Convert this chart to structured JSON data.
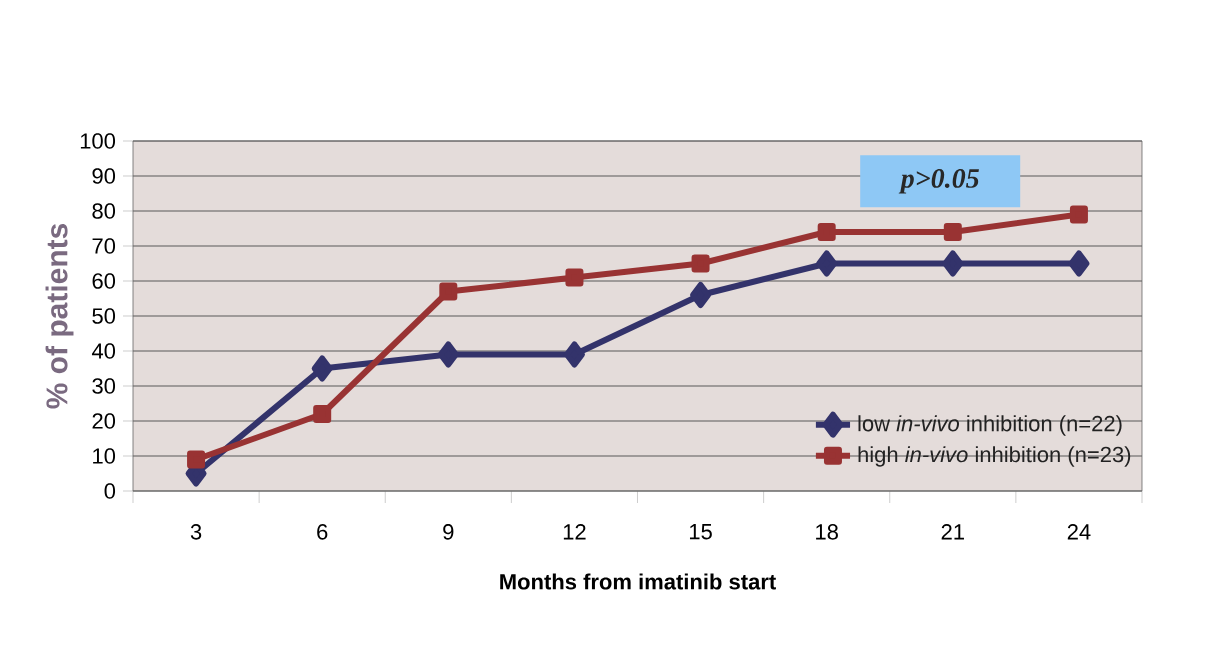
{
  "chart_data": {
    "type": "line",
    "xlabel": "Months from imatinib start",
    "ylabel": "% of patients",
    "categories": [
      "3",
      "6",
      "9",
      "12",
      "15",
      "18",
      "21",
      "24"
    ],
    "series": [
      {
        "name": "low *in-vivo* inhibition (n=22)",
        "color": "#33336b",
        "marker": "diamond",
        "values": [
          5,
          35,
          39,
          39,
          56,
          65,
          65,
          65
        ]
      },
      {
        "name": "high *in-vivo* inhibition (n=23)",
        "color": "#993333",
        "marker": "square",
        "values": [
          9,
          22,
          57,
          61,
          65,
          74,
          74,
          79
        ]
      }
    ],
    "ylim": [
      0,
      100
    ],
    "yticks": [
      0,
      10,
      20,
      30,
      40,
      50,
      60,
      70,
      80,
      90,
      100
    ],
    "grid": "y",
    "legend": "bottom right",
    "line_style": "solid",
    "annotations": [
      "p>0.05"
    ]
  }
}
